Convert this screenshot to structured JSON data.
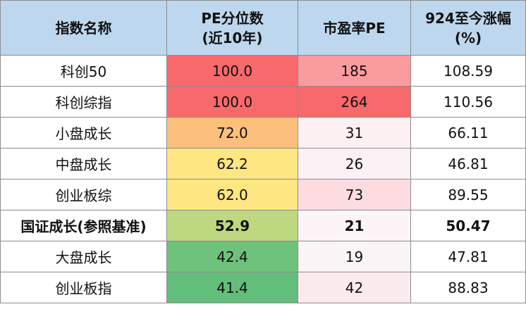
{
  "headers": {
    "name": "指数名称",
    "pe_pct_line1": "PE分位数",
    "pe_pct_line2": "(近10年)",
    "pe": "市盈率PE",
    "change_line1": "924至今涨幅",
    "change_line2": "(%)"
  },
  "header_color": "#bdd7ee",
  "rows": [
    {
      "name": "科创50",
      "pe_pct": "100.0",
      "pe": "185",
      "change": "108.59",
      "pct_color": "#f8696b",
      "pe_color": "#fa9b9d",
      "bold": false
    },
    {
      "name": "科创综指",
      "pe_pct": "100.0",
      "pe": "264",
      "change": "110.56",
      "pct_color": "#f8696b",
      "pe_color": "#f8696b",
      "bold": false
    },
    {
      "name": "小盘成长",
      "pe_pct": "72.0",
      "pe": "31",
      "change": "66.11",
      "pct_color": "#fcc07c",
      "pe_color": "#fcf0f3",
      "bold": false
    },
    {
      "name": "中盘成长",
      "pe_pct": "62.2",
      "pe": "26",
      "change": "46.81",
      "pct_color": "#fee683",
      "pe_color": "#fcf1f4",
      "bold": false
    },
    {
      "name": "创业板综",
      "pe_pct": "62.0",
      "pe": "73",
      "change": "89.55",
      "pct_color": "#fee783",
      "pe_color": "#fcdce0",
      "bold": false
    },
    {
      "name": "国证成长(参照基准)",
      "pe_pct": "52.9",
      "pe": "21",
      "change": "50.47",
      "pct_color": "#bed87f",
      "pe_color": "#fcf4f7",
      "bold": true
    },
    {
      "name": "大盘成长",
      "pe_pct": "42.4",
      "pe": "19",
      "change": "47.81",
      "pct_color": "#6fc27b",
      "pe_color": "#fcf5f8",
      "bold": false
    },
    {
      "name": "创业板指",
      "pe_pct": "41.4",
      "pe": "42",
      "change": "88.83",
      "pct_color": "#63be7b",
      "pe_color": "#fcebee",
      "bold": false
    }
  ]
}
